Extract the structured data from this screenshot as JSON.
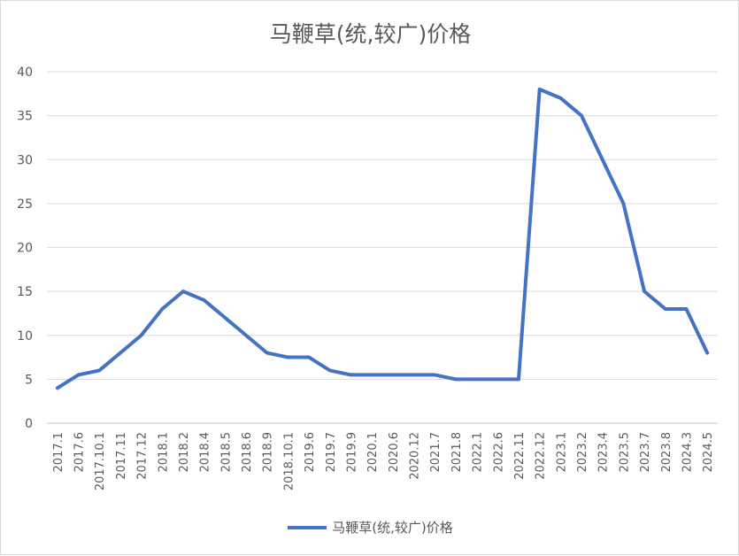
{
  "chart_data": {
    "type": "line",
    "title": "马鞭草(统,较广)价格",
    "xlabel": "",
    "ylabel": "",
    "ylim": [
      0,
      40
    ],
    "yticks": [
      0,
      5,
      10,
      15,
      20,
      25,
      30,
      35,
      40
    ],
    "grid": true,
    "legend_position": "bottom",
    "line_color": "#4472c4",
    "categories": [
      "2017.1",
      "2017.6",
      "2017.10.1",
      "2017.11",
      "2017.12",
      "2018.1",
      "2018.2",
      "2018.4",
      "2018.5",
      "2018.6",
      "2018.9",
      "2018.10.1",
      "2019.6",
      "2019.7",
      "2019.9",
      "2020.1",
      "2020.6",
      "2020.12",
      "2021.7",
      "2021.8",
      "2022.1",
      "2022.6",
      "2022.11",
      "2022.12",
      "2023.1",
      "2023.2",
      "2023.4",
      "2023.5",
      "2023.7",
      "2023.8",
      "2024.3",
      "2024.5"
    ],
    "series": [
      {
        "name": "马鞭草(统,较广)价格",
        "values": [
          4,
          5.5,
          6,
          8,
          10,
          13,
          15,
          14,
          12,
          10,
          8,
          7.5,
          7.5,
          6,
          5.5,
          5.5,
          5.5,
          5.5,
          5.5,
          5,
          5,
          5,
          5,
          38,
          37,
          35,
          30,
          25,
          15,
          13,
          13,
          8
        ]
      }
    ]
  }
}
